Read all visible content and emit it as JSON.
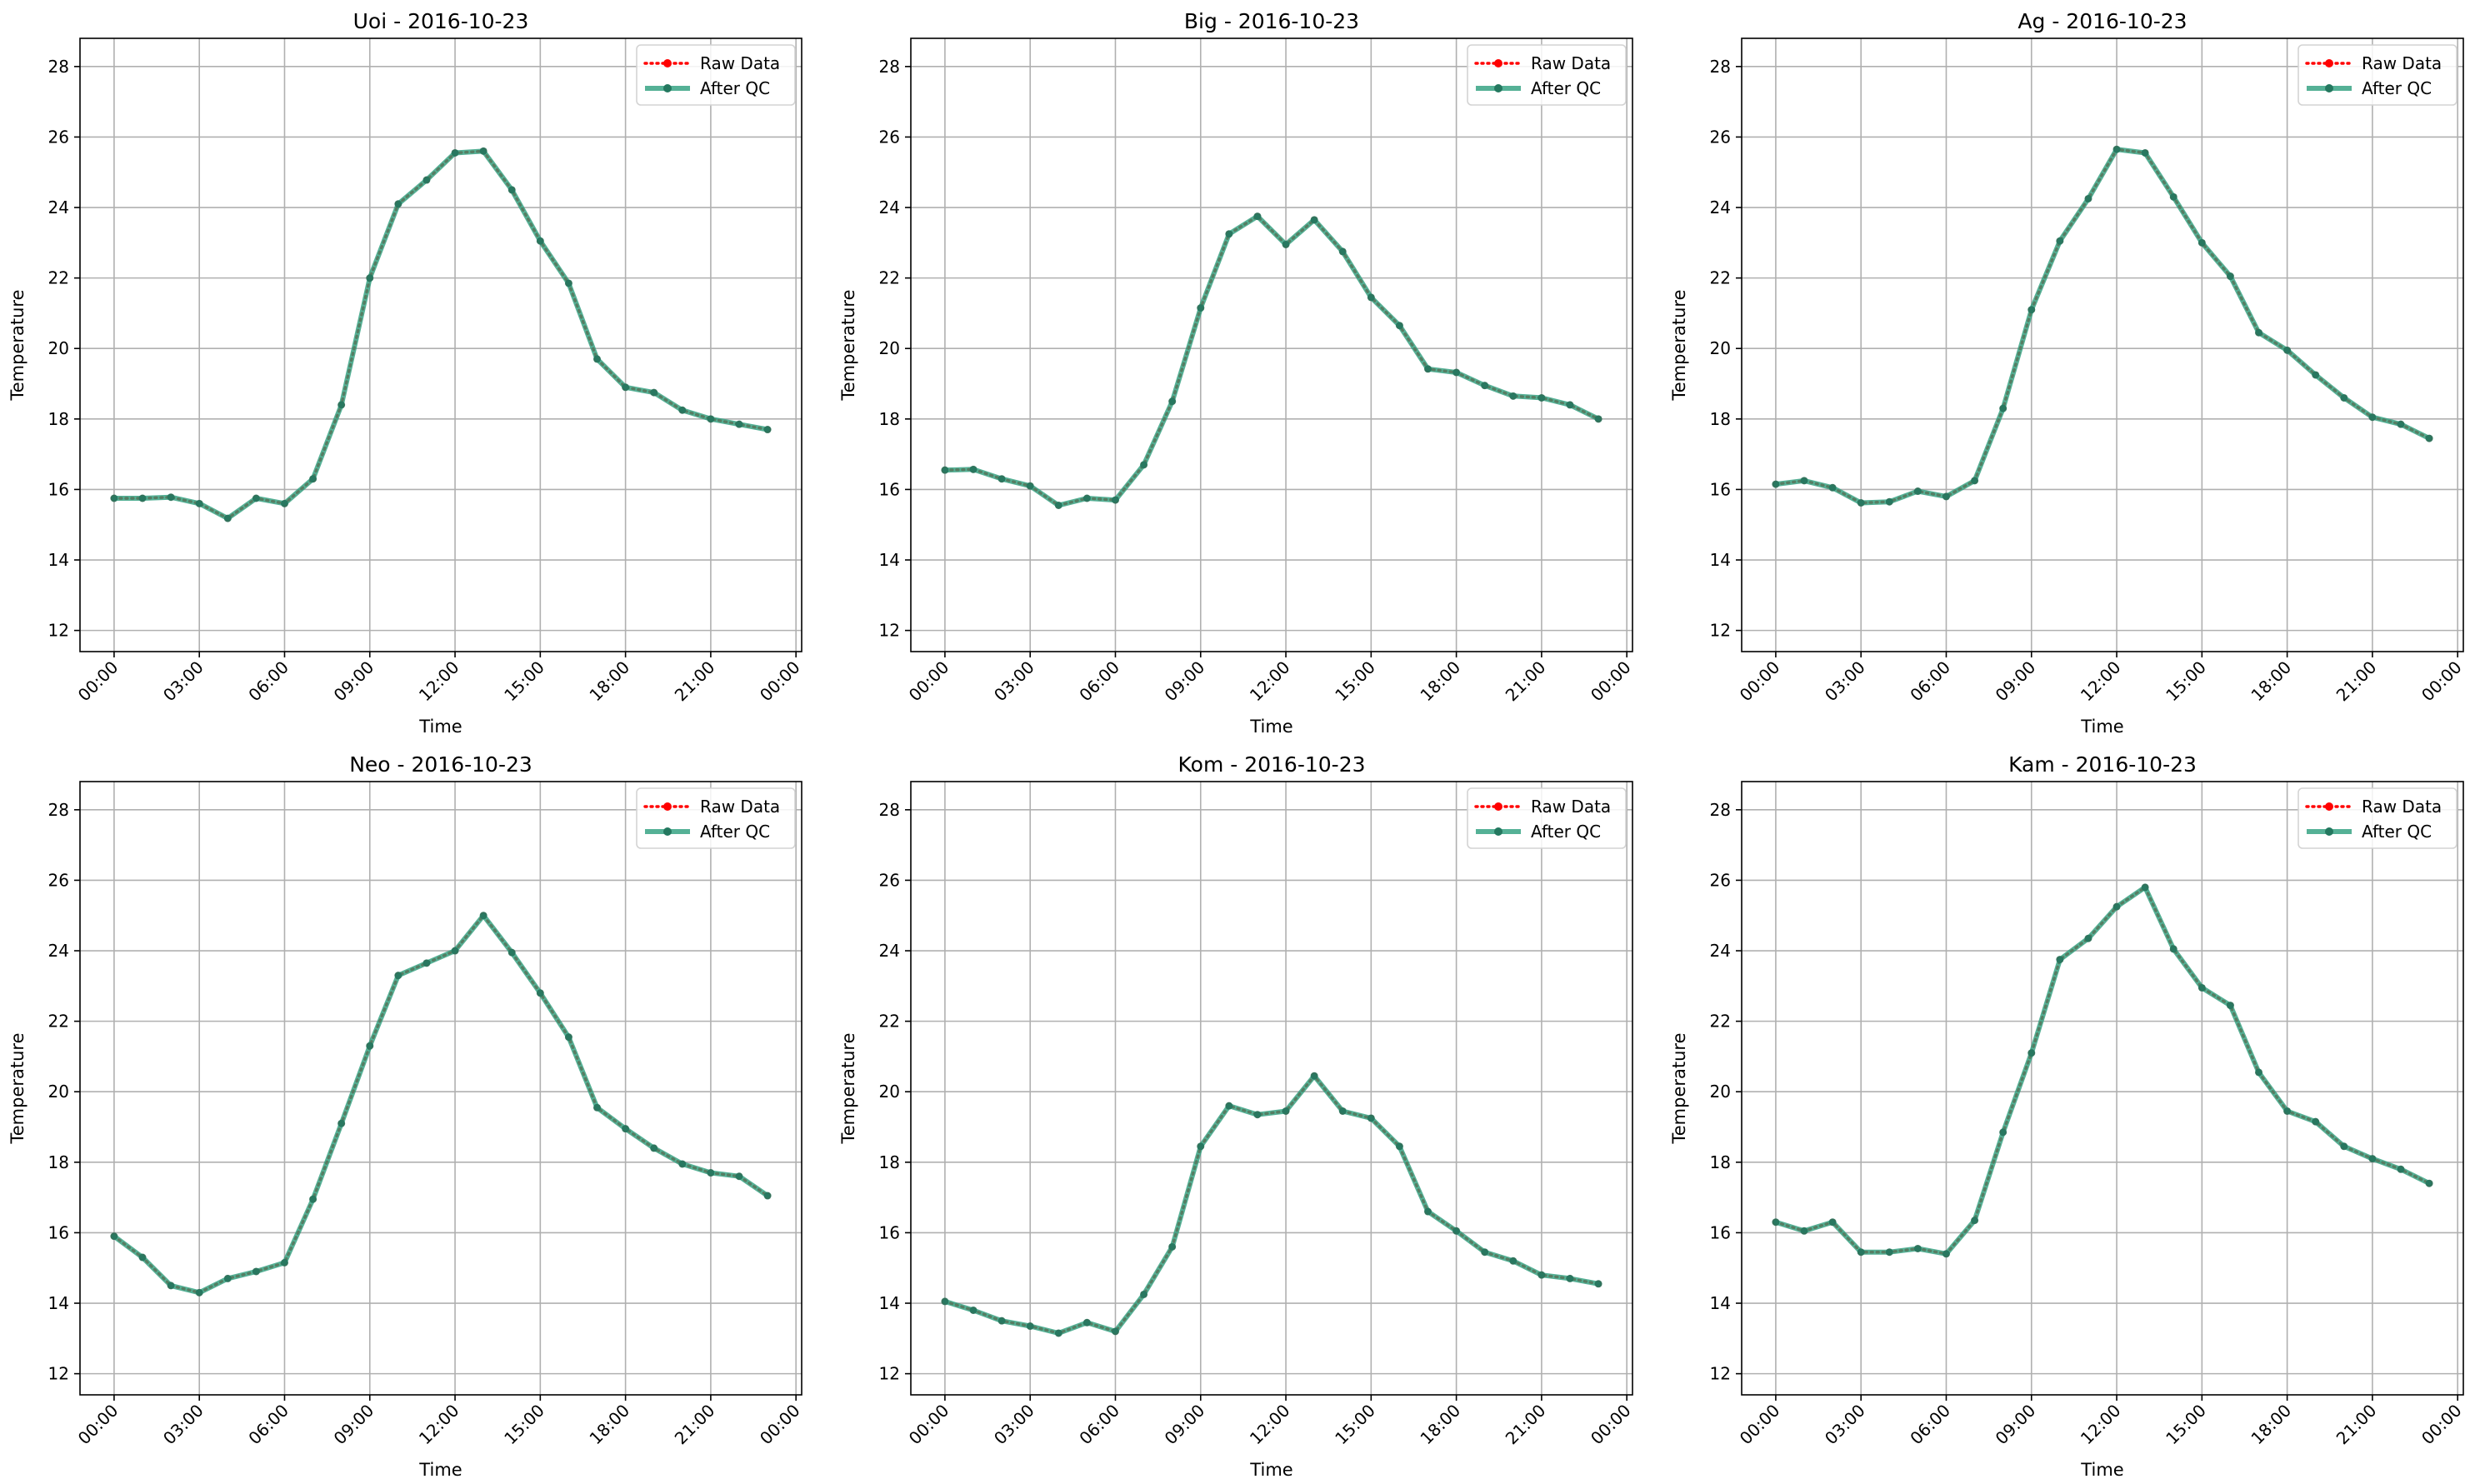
{
  "chart_data": [
    {
      "type": "line",
      "title": "Uoi - 2016-10-23",
      "xlabel": "Time",
      "ylabel": "Temperature",
      "x_ticks": [
        "00:00",
        "03:00",
        "06:00",
        "09:00",
        "12:00",
        "15:00",
        "18:00",
        "21:00",
        "00:00"
      ],
      "y_ticks": [
        12,
        14,
        16,
        18,
        20,
        22,
        24,
        26,
        28
      ],
      "ylim": [
        11.4,
        28.8
      ],
      "xlim_hours": [
        -1.2,
        24.2
      ],
      "grid": true,
      "legend_position": "top-right",
      "hours": [
        0,
        1,
        2,
        3,
        4,
        5,
        6,
        7,
        8,
        9,
        10,
        11,
        12,
        13,
        14,
        15,
        16,
        17,
        18,
        19,
        20,
        21,
        22,
        23
      ],
      "series": [
        {
          "name": "Raw Data",
          "color": "#ff0000",
          "style": "dotted",
          "values": [
            15.75,
            15.75,
            15.78,
            15.6,
            15.18,
            15.75,
            15.6,
            16.3,
            18.4,
            22.0,
            24.1,
            24.78,
            25.55,
            25.6,
            24.5,
            23.05,
            21.85,
            19.7,
            18.9,
            18.75,
            18.25,
            18.0,
            17.85,
            17.7
          ]
        },
        {
          "name": "After QC",
          "color": "#2a9d7c",
          "style": "solid",
          "values": [
            15.75,
            15.75,
            15.78,
            15.6,
            15.18,
            15.75,
            15.6,
            16.3,
            18.4,
            22.0,
            24.1,
            24.78,
            25.55,
            25.6,
            24.5,
            23.05,
            21.85,
            19.7,
            18.9,
            18.75,
            18.25,
            18.0,
            17.85,
            17.7
          ]
        }
      ]
    },
    {
      "type": "line",
      "title": "Big - 2016-10-23",
      "xlabel": "Time",
      "ylabel": "Temperature",
      "x_ticks": [
        "00:00",
        "03:00",
        "06:00",
        "09:00",
        "12:00",
        "15:00",
        "18:00",
        "21:00",
        "00:00"
      ],
      "y_ticks": [
        12,
        14,
        16,
        18,
        20,
        22,
        24,
        26,
        28
      ],
      "ylim": [
        11.4,
        28.8
      ],
      "xlim_hours": [
        -1.2,
        24.2
      ],
      "grid": true,
      "legend_position": "top-right",
      "hours": [
        0,
        1,
        2,
        3,
        4,
        5,
        6,
        7,
        8,
        9,
        10,
        11,
        12,
        13,
        14,
        15,
        16,
        17,
        18,
        19,
        20,
        21,
        22,
        23
      ],
      "series": [
        {
          "name": "Raw Data",
          "color": "#ff0000",
          "style": "dotted",
          "values": [
            16.55,
            16.57,
            16.3,
            16.1,
            15.55,
            15.75,
            15.7,
            16.7,
            18.5,
            21.15,
            23.25,
            23.75,
            22.95,
            23.65,
            22.75,
            21.45,
            20.65,
            19.42,
            19.32,
            18.95,
            18.65,
            18.6,
            18.4,
            18.0
          ]
        },
        {
          "name": "After QC",
          "color": "#2a9d7c",
          "style": "solid",
          "values": [
            16.55,
            16.57,
            16.3,
            16.1,
            15.55,
            15.75,
            15.7,
            16.7,
            18.5,
            21.15,
            23.25,
            23.75,
            22.95,
            23.65,
            22.75,
            21.45,
            20.65,
            19.42,
            19.32,
            18.95,
            18.65,
            18.6,
            18.4,
            18.0
          ]
        }
      ]
    },
    {
      "type": "line",
      "title": "Ag - 2016-10-23",
      "xlabel": "Time",
      "ylabel": "Temperature",
      "x_ticks": [
        "00:00",
        "03:00",
        "06:00",
        "09:00",
        "12:00",
        "15:00",
        "18:00",
        "21:00",
        "00:00"
      ],
      "y_ticks": [
        12,
        14,
        16,
        18,
        20,
        22,
        24,
        26,
        28
      ],
      "ylim": [
        11.4,
        28.8
      ],
      "xlim_hours": [
        -1.2,
        24.2
      ],
      "grid": true,
      "legend_position": "top-right",
      "hours": [
        0,
        1,
        2,
        3,
        4,
        5,
        6,
        7,
        8,
        9,
        10,
        11,
        12,
        13,
        14,
        15,
        16,
        17,
        18,
        19,
        20,
        21,
        22,
        23
      ],
      "series": [
        {
          "name": "Raw Data",
          "color": "#ff0000",
          "style": "dotted",
          "values": [
            16.15,
            16.25,
            16.05,
            15.62,
            15.65,
            15.95,
            15.8,
            16.25,
            18.3,
            21.1,
            23.05,
            24.25,
            25.65,
            25.55,
            24.3,
            23.0,
            22.05,
            20.45,
            19.95,
            19.25,
            18.6,
            18.05,
            17.85,
            17.45
          ]
        },
        {
          "name": "After QC",
          "color": "#2a9d7c",
          "style": "solid",
          "values": [
            16.15,
            16.25,
            16.05,
            15.62,
            15.65,
            15.95,
            15.8,
            16.25,
            18.3,
            21.1,
            23.05,
            24.25,
            25.65,
            25.55,
            24.3,
            23.0,
            22.05,
            20.45,
            19.95,
            19.25,
            18.6,
            18.05,
            17.85,
            17.45
          ]
        }
      ]
    },
    {
      "type": "line",
      "title": "Neo - 2016-10-23",
      "xlabel": "Time",
      "ylabel": "Temperature",
      "x_ticks": [
        "00:00",
        "03:00",
        "06:00",
        "09:00",
        "12:00",
        "15:00",
        "18:00",
        "21:00",
        "00:00"
      ],
      "y_ticks": [
        12,
        14,
        16,
        18,
        20,
        22,
        24,
        26,
        28
      ],
      "ylim": [
        11.4,
        28.8
      ],
      "xlim_hours": [
        -1.2,
        24.2
      ],
      "grid": true,
      "legend_position": "top-right",
      "hours": [
        0,
        1,
        2,
        3,
        4,
        5,
        6,
        7,
        8,
        9,
        10,
        11,
        12,
        13,
        14,
        15,
        16,
        17,
        18,
        19,
        20,
        21,
        22,
        23
      ],
      "series": [
        {
          "name": "Raw Data",
          "color": "#ff0000",
          "style": "dotted",
          "values": [
            15.9,
            15.3,
            14.5,
            14.3,
            14.7,
            14.9,
            15.15,
            16.95,
            19.1,
            21.3,
            23.3,
            23.65,
            24.0,
            25.0,
            23.95,
            22.8,
            21.55,
            19.55,
            18.95,
            18.4,
            17.95,
            17.7,
            17.6,
            17.05
          ]
        },
        {
          "name": "After QC",
          "color": "#2a9d7c",
          "style": "solid",
          "values": [
            15.9,
            15.3,
            14.5,
            14.3,
            14.7,
            14.9,
            15.15,
            16.95,
            19.1,
            21.3,
            23.3,
            23.65,
            24.0,
            25.0,
            23.95,
            22.8,
            21.55,
            19.55,
            18.95,
            18.4,
            17.95,
            17.7,
            17.6,
            17.05
          ]
        }
      ]
    },
    {
      "type": "line",
      "title": "Kom - 2016-10-23",
      "xlabel": "Time",
      "ylabel": "Temperature",
      "x_ticks": [
        "00:00",
        "03:00",
        "06:00",
        "09:00",
        "12:00",
        "15:00",
        "18:00",
        "21:00",
        "00:00"
      ],
      "y_ticks": [
        12,
        14,
        16,
        18,
        20,
        22,
        24,
        26,
        28
      ],
      "ylim": [
        11.4,
        28.8
      ],
      "xlim_hours": [
        -1.2,
        24.2
      ],
      "grid": true,
      "legend_position": "top-right",
      "hours": [
        0,
        1,
        2,
        3,
        4,
        5,
        6,
        7,
        8,
        9,
        10,
        11,
        12,
        13,
        14,
        15,
        16,
        17,
        18,
        19,
        20,
        21,
        22,
        23
      ],
      "series": [
        {
          "name": "Raw Data",
          "color": "#ff0000",
          "style": "dotted",
          "values": [
            14.05,
            13.8,
            13.5,
            13.35,
            13.15,
            13.45,
            13.2,
            14.25,
            15.6,
            18.45,
            19.6,
            19.35,
            19.45,
            20.45,
            19.45,
            19.25,
            18.45,
            16.6,
            16.05,
            15.45,
            15.2,
            14.8,
            14.7,
            14.55
          ]
        },
        {
          "name": "After QC",
          "color": "#2a9d7c",
          "style": "solid",
          "values": [
            14.05,
            13.8,
            13.5,
            13.35,
            13.15,
            13.45,
            13.2,
            14.25,
            15.6,
            18.45,
            19.6,
            19.35,
            19.45,
            20.45,
            19.45,
            19.25,
            18.45,
            16.6,
            16.05,
            15.45,
            15.2,
            14.8,
            14.7,
            14.55
          ]
        }
      ]
    },
    {
      "type": "line",
      "title": "Kam - 2016-10-23",
      "xlabel": "Time",
      "ylabel": "Temperature",
      "x_ticks": [
        "00:00",
        "03:00",
        "06:00",
        "09:00",
        "12:00",
        "15:00",
        "18:00",
        "21:00",
        "00:00"
      ],
      "y_ticks": [
        12,
        14,
        16,
        18,
        20,
        22,
        24,
        26,
        28
      ],
      "ylim": [
        11.4,
        28.8
      ],
      "xlim_hours": [
        -1.2,
        24.2
      ],
      "grid": true,
      "legend_position": "top-right",
      "hours": [
        0,
        1,
        2,
        3,
        4,
        5,
        6,
        7,
        8,
        9,
        10,
        11,
        12,
        13,
        14,
        15,
        16,
        17,
        18,
        19,
        20,
        21,
        22,
        23
      ],
      "series": [
        {
          "name": "Raw Data",
          "color": "#ff0000",
          "style": "dotted",
          "values": [
            16.3,
            16.05,
            16.3,
            15.45,
            15.45,
            15.55,
            15.4,
            16.35,
            18.85,
            21.1,
            23.75,
            24.35,
            25.25,
            25.8,
            24.05,
            22.95,
            22.45,
            20.55,
            19.45,
            19.15,
            18.45,
            18.1,
            17.8,
            17.4
          ]
        },
        {
          "name": "After QC",
          "color": "#2a9d7c",
          "style": "solid",
          "values": [
            16.3,
            16.05,
            16.3,
            15.45,
            15.45,
            15.55,
            15.4,
            16.35,
            18.85,
            21.1,
            23.75,
            24.35,
            25.25,
            25.8,
            24.05,
            22.95,
            22.45,
            20.55,
            19.45,
            19.15,
            18.45,
            18.1,
            17.8,
            17.4
          ]
        }
      ]
    }
  ]
}
